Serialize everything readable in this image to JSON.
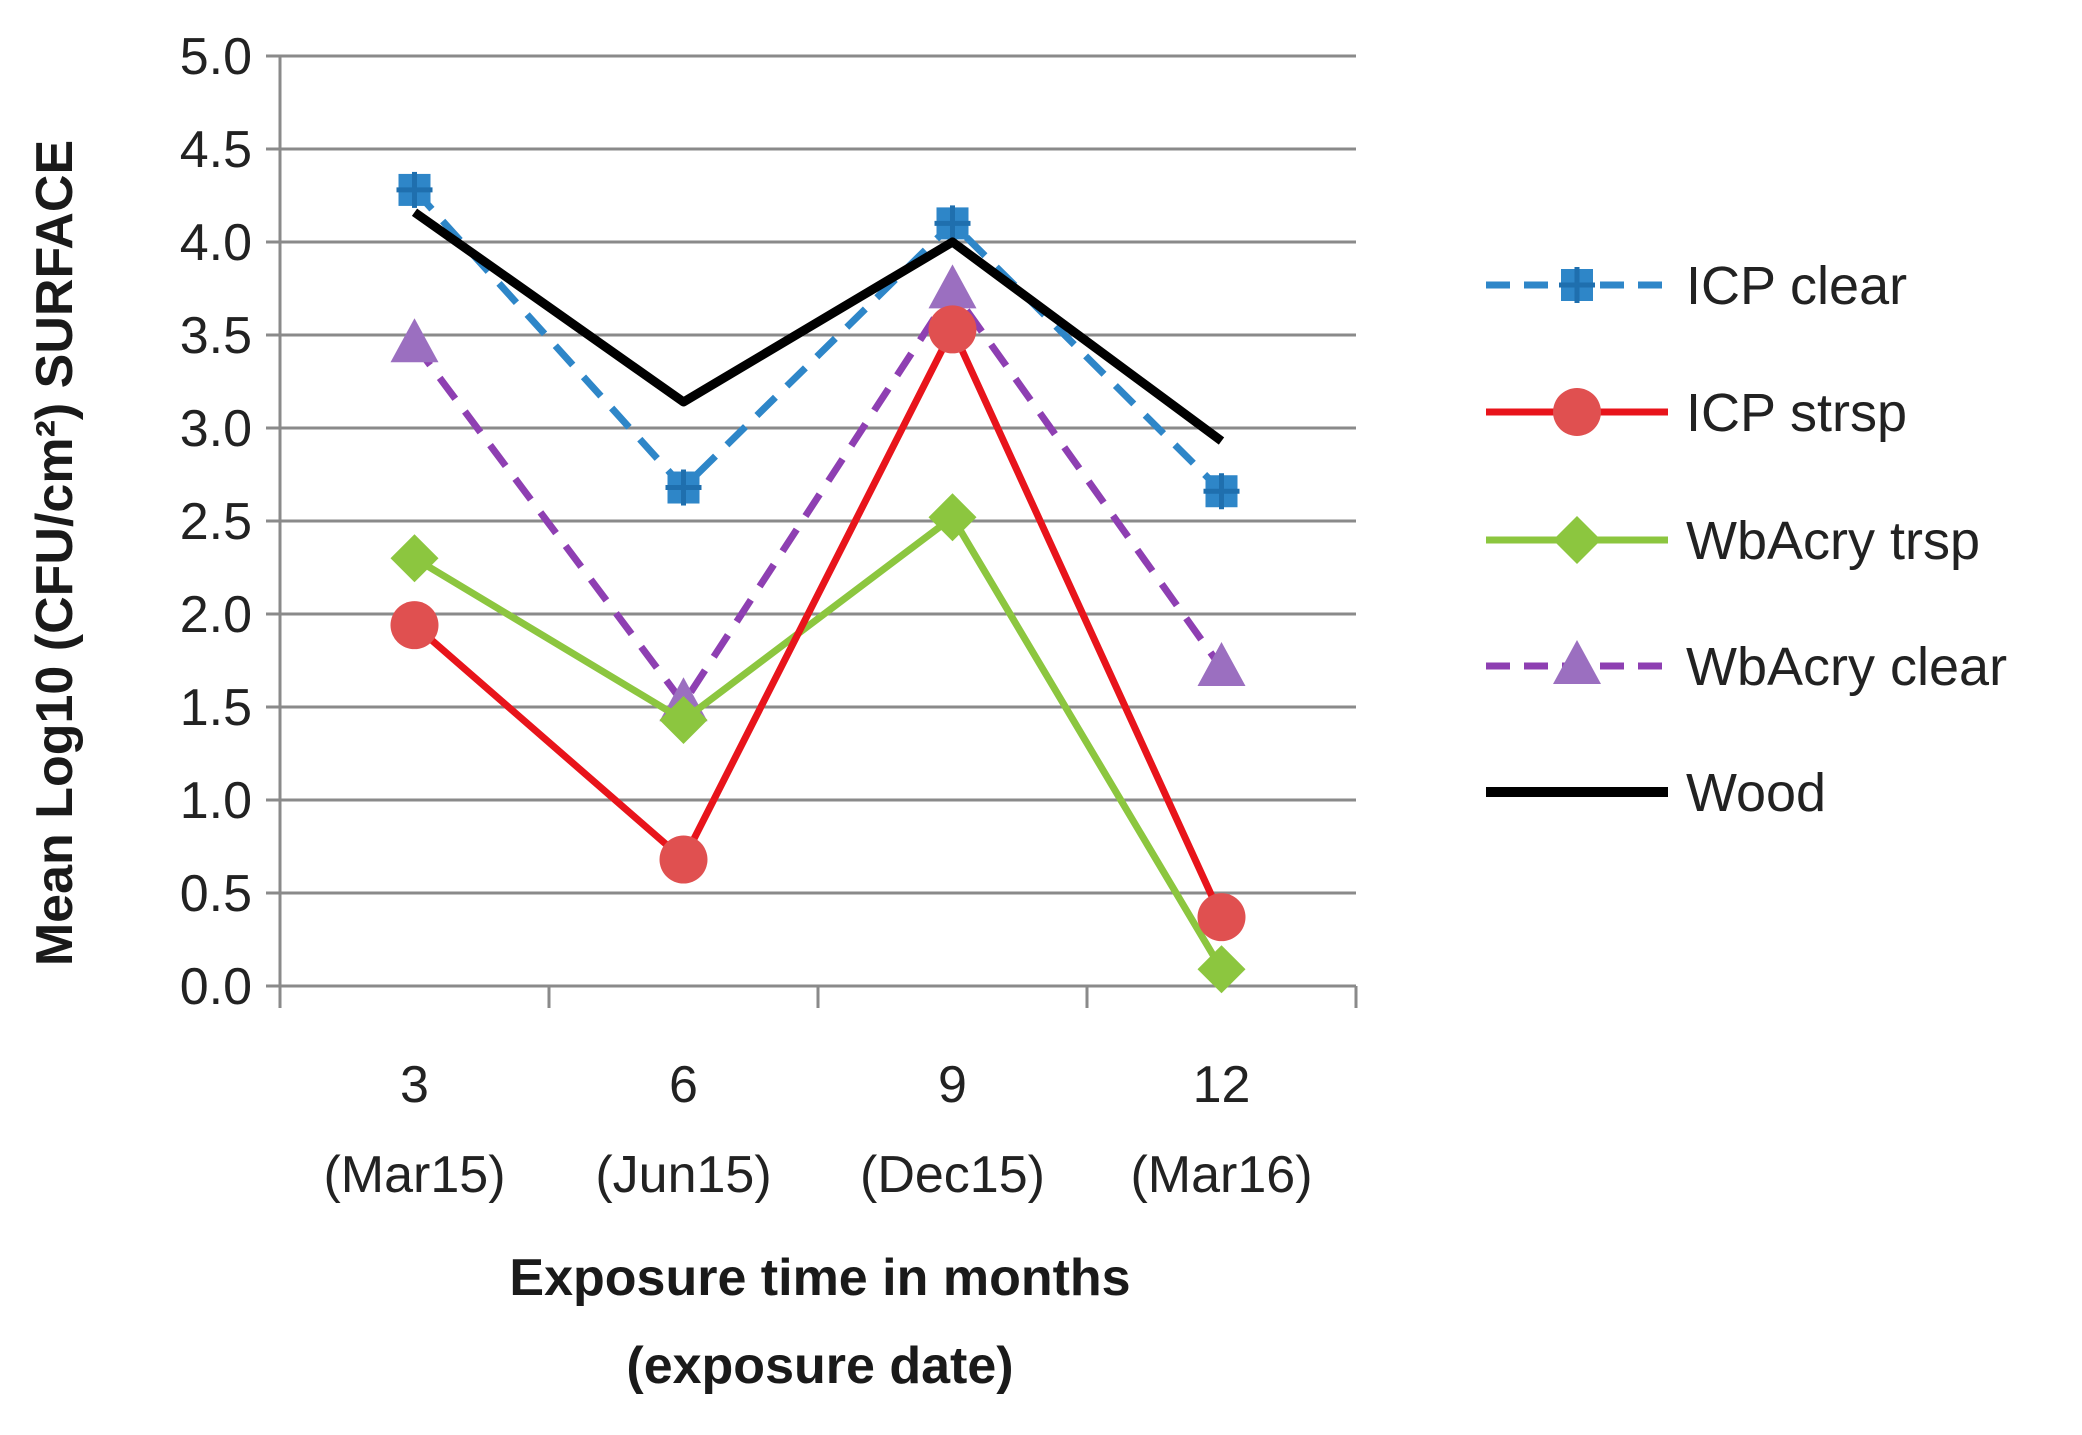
{
  "chart_data": {
    "type": "line",
    "title": "",
    "xlabel": [
      "Exposure time in months",
      "(exposure date)"
    ],
    "ylabel": "Mean Log10 (CFU/cm²) SURFACE",
    "ylim": [
      0,
      5
    ],
    "yticks": [
      "0.0",
      "0.5",
      "1.0",
      "1.5",
      "2.0",
      "2.5",
      "3.0",
      "3.5",
      "4.0",
      "4.5",
      "5.0"
    ],
    "categories": [
      {
        "top": "3",
        "bottom": "(Mar15)"
      },
      {
        "top": "6",
        "bottom": "(Jun15)"
      },
      {
        "top": "9",
        "bottom": "(Dec15)"
      },
      {
        "top": "12",
        "bottom": "(Mar16)"
      }
    ],
    "grid": true,
    "legend_position": "right",
    "series": [
      {
        "name": "ICP clear",
        "values": [
          4.28,
          2.68,
          4.1,
          2.66
        ],
        "color": "#2e86c8",
        "dash": "dashed",
        "marker": "square"
      },
      {
        "name": "ICP strsp",
        "values": [
          1.94,
          0.68,
          3.53,
          0.37
        ],
        "color": "#e8141b",
        "dash": "solid",
        "marker": "circle",
        "marker_color": "#e05050"
      },
      {
        "name": "WbAcry trsp",
        "values": [
          2.3,
          1.43,
          2.52,
          0.09
        ],
        "color": "#8cc63f",
        "dash": "solid",
        "marker": "diamond"
      },
      {
        "name": "WbAcry clear",
        "values": [
          3.45,
          1.52,
          3.74,
          1.71
        ],
        "color": "#8e3fb2",
        "dash": "dashed",
        "marker": "triangle",
        "marker_color": "#9b6fc0"
      },
      {
        "name": "Wood",
        "values": [
          4.16,
          3.14,
          4.0,
          2.93
        ],
        "color": "#000000",
        "dash": "solid",
        "marker": "none"
      }
    ]
  }
}
